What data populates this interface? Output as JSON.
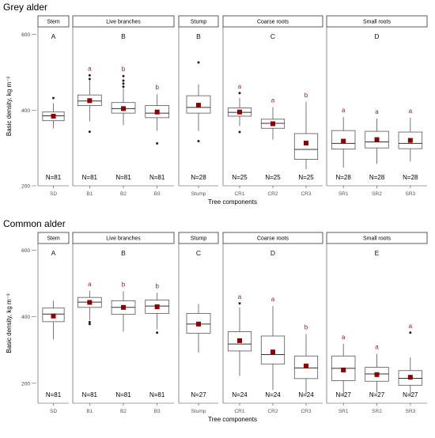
{
  "colors": {
    "mean": "#8b0000",
    "sig_letter": "#9a2020",
    "box": "#555555",
    "strip_border": "#333333"
  },
  "chart_data": [
    {
      "type": "box",
      "title": "Grey alder",
      "ylabel": "Basic density, kg  m⁻³",
      "xlabel": "Tree components",
      "ylim": [
        200,
        620
      ],
      "yticks": [
        200,
        400,
        600
      ],
      "facets": [
        {
          "label": "Stem",
          "group": "A",
          "categories": [
            {
              "name": "SD",
              "n": "N=81",
              "letter": "",
              "q1": 372,
              "median": 385,
              "q3": 395,
              "wlo": 352,
              "whi": 418,
              "mean": 384,
              "outliers": [
                432
              ]
            }
          ]
        },
        {
          "label": "Live branches",
          "group": "B",
          "categories": [
            {
              "name": "B1",
              "n": "N=81",
              "letter": "a",
              "q1": 412,
              "median": 424,
              "q3": 440,
              "wlo": 370,
              "whi": 478,
              "mean": 425,
              "outliers": [
                343,
                482,
                492
              ]
            },
            {
              "name": "B2",
              "n": "N=81",
              "letter": "b",
              "q1": 392,
              "median": 404,
              "q3": 420,
              "wlo": 360,
              "whi": 458,
              "mean": 404,
              "outliers": [
                462,
                470,
                478,
                490
              ]
            },
            {
              "name": "B3",
              "n": "N=81",
              "letter": "b",
              "q1": 380,
              "median": 392,
              "q3": 412,
              "wlo": 346,
              "whi": 442,
              "mean": 395,
              "outliers": [
                312
              ]
            }
          ]
        },
        {
          "label": "Stump",
          "group": "B",
          "categories": [
            {
              "name": "Stump",
              "n": "N=28",
              "letter": "",
              "q1": 392,
              "median": 407,
              "q3": 438,
              "wlo": 345,
              "whi": 468,
              "mean": 413,
              "outliers": [
                318,
                526
              ]
            }
          ]
        },
        {
          "label": "Coarse roots",
          "group": "C",
          "categories": [
            {
              "name": "CR1",
              "n": "N=25",
              "letter": "a",
              "q1": 384,
              "median": 394,
              "q3": 406,
              "wlo": 358,
              "whi": 432,
              "mean": 395,
              "outliers": [
                445,
                342
              ]
            },
            {
              "name": "CR2",
              "n": "N=25",
              "letter": "a",
              "q1": 352,
              "median": 365,
              "q3": 376,
              "wlo": 322,
              "whi": 408,
              "mean": 364,
              "outliers": []
            },
            {
              "name": "CR3",
              "n": "N=25",
              "letter": "b",
              "q1": 270,
              "median": 296,
              "q3": 338,
              "wlo": 244,
              "whi": 422,
              "mean": 313,
              "outliers": []
            }
          ]
        },
        {
          "label": "Small roots",
          "group": "D",
          "categories": [
            {
              "name": "SR1",
              "n": "N=28",
              "letter": "a",
              "q1": 297,
              "median": 312,
              "q3": 346,
              "wlo": 248,
              "whi": 382,
              "mean": 318,
              "outliers": []
            },
            {
              "name": "SR2",
              "n": "N=28",
              "letter": "a",
              "q1": 300,
              "median": 316,
              "q3": 344,
              "wlo": 258,
              "whi": 378,
              "mean": 322,
              "outliers": []
            },
            {
              "name": "SR3",
              "n": "N=28",
              "letter": "a",
              "q1": 298,
              "median": 312,
              "q3": 342,
              "wlo": 264,
              "whi": 380,
              "mean": 320,
              "outliers": []
            }
          ]
        }
      ]
    },
    {
      "type": "box",
      "title": "Common alder",
      "ylabel": "Basic density, kg  m⁻³",
      "xlabel": "Tree components",
      "ylim": [
        140,
        620
      ],
      "yticks": [
        200,
        400,
        600
      ],
      "facets": [
        {
          "label": "Stem",
          "group": "A",
          "categories": [
            {
              "name": "SD",
              "n": "N=81",
              "letter": "",
              "q1": 385,
              "median": 408,
              "q3": 426,
              "wlo": 332,
              "whi": 448,
              "mean": 402,
              "outliers": []
            }
          ]
        },
        {
          "label": "Live branches",
          "group": "B",
          "categories": [
            {
              "name": "B1",
              "n": "N=81",
              "letter": "a",
              "q1": 428,
              "median": 444,
              "q3": 458,
              "wlo": 390,
              "whi": 478,
              "mean": 443,
              "outliers": [
                384,
                378
              ]
            },
            {
              "name": "B2",
              "n": "N=81",
              "letter": "b",
              "q1": 407,
              "median": 428,
              "q3": 448,
              "wlo": 355,
              "whi": 476,
              "mean": 428,
              "outliers": []
            },
            {
              "name": "B3",
              "n": "N=81",
              "letter": "b",
              "q1": 410,
              "median": 432,
              "q3": 450,
              "wlo": 362,
              "whi": 472,
              "mean": 430,
              "outliers": [
                352
              ]
            }
          ]
        },
        {
          "label": "Stump",
          "group": "C",
          "categories": [
            {
              "name": "Stump",
              "n": "N=27",
              "letter": "",
              "q1": 350,
              "median": 378,
              "q3": 410,
              "wlo": 292,
              "whi": 438,
              "mean": 378,
              "outliers": []
            }
          ]
        },
        {
          "label": "Coarse roots",
          "group": "D",
          "categories": [
            {
              "name": "CR1",
              "n": "N=24",
              "letter": "a",
              "q1": 297,
              "median": 318,
              "q3": 355,
              "wlo": 222,
              "whi": 428,
              "mean": 328,
              "outliers": [
                440
              ]
            },
            {
              "name": "CR2",
              "n": "N=24",
              "letter": "a",
              "q1": 258,
              "median": 286,
              "q3": 342,
              "wlo": 180,
              "whi": 432,
              "mean": 294,
              "outliers": []
            },
            {
              "name": "CR3",
              "n": "N=24",
              "letter": "b",
              "q1": 214,
              "median": 246,
              "q3": 282,
              "wlo": 168,
              "whi": 348,
              "mean": 252,
              "outliers": []
            }
          ]
        },
        {
          "label": "Small roots",
          "group": "E",
          "categories": [
            {
              "name": "SR1",
              "n": "N=27",
              "letter": "a",
              "q1": 208,
              "median": 245,
              "q3": 282,
              "wlo": 160,
              "whi": 318,
              "mean": 240,
              "outliers": []
            },
            {
              "name": "SR2",
              "n": "N=27",
              "letter": "a",
              "q1": 206,
              "median": 228,
              "q3": 248,
              "wlo": 172,
              "whi": 288,
              "mean": 226,
              "outliers": []
            },
            {
              "name": "SR3",
              "n": "N=27",
              "letter": "a",
              "q1": 194,
              "median": 215,
              "q3": 238,
              "wlo": 160,
              "whi": 278,
              "mean": 218,
              "outliers": [
                352
              ]
            }
          ]
        }
      ]
    }
  ]
}
